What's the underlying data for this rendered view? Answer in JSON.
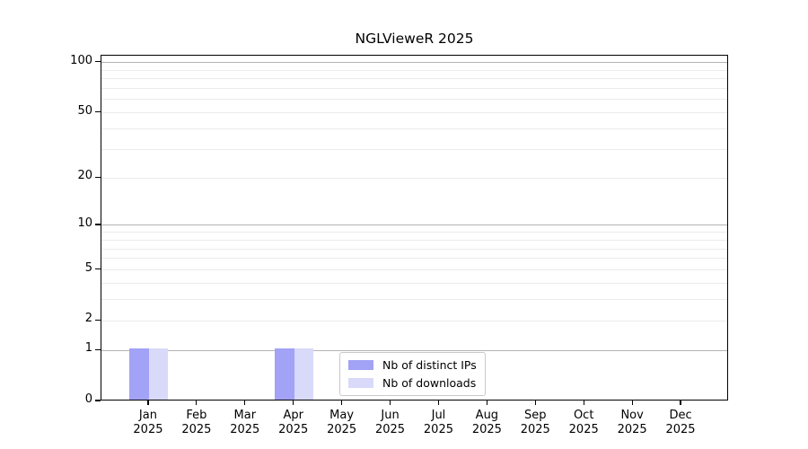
{
  "figure": {
    "title": "NGLVieweR 2025"
  },
  "chart_data": {
    "type": "bar",
    "title": "NGLVieweR 2025",
    "categories": [
      "Jan",
      "Feb",
      "Mar",
      "Apr",
      "May",
      "Jun",
      "Jul",
      "Aug",
      "Sep",
      "Oct",
      "Nov",
      "Dec"
    ],
    "x_year_label": "2025",
    "series": [
      {
        "name": "Nb of distinct IPs",
        "color": "#a2a2f6",
        "values": [
          1,
          0,
          0,
          1,
          0,
          0,
          0,
          0,
          0,
          0,
          0,
          0
        ]
      },
      {
        "name": "Nb of downloads",
        "color": "#d9d9f9",
        "values": [
          1,
          0,
          0,
          1,
          0,
          0,
          0,
          0,
          0,
          0,
          0,
          0
        ]
      }
    ],
    "y_axis": {
      "scale": "log1p",
      "tick_values": [
        0,
        1,
        2,
        5,
        10,
        20,
        50,
        100
      ],
      "minor_gridline_values": [
        3,
        4,
        6,
        7,
        8,
        9,
        30,
        40,
        60,
        70,
        80,
        90
      ],
      "max": 110
    },
    "legend": {
      "position": "bottom-center",
      "entries": [
        "Nb of distinct IPs",
        "Nb of downloads"
      ]
    },
    "colors": {
      "major_grid": "#b3b3b3",
      "minor_grid": "#ebebeb",
      "spine": "#000000",
      "background": "#ffffff"
    },
    "grid": "horizontal-only"
  }
}
